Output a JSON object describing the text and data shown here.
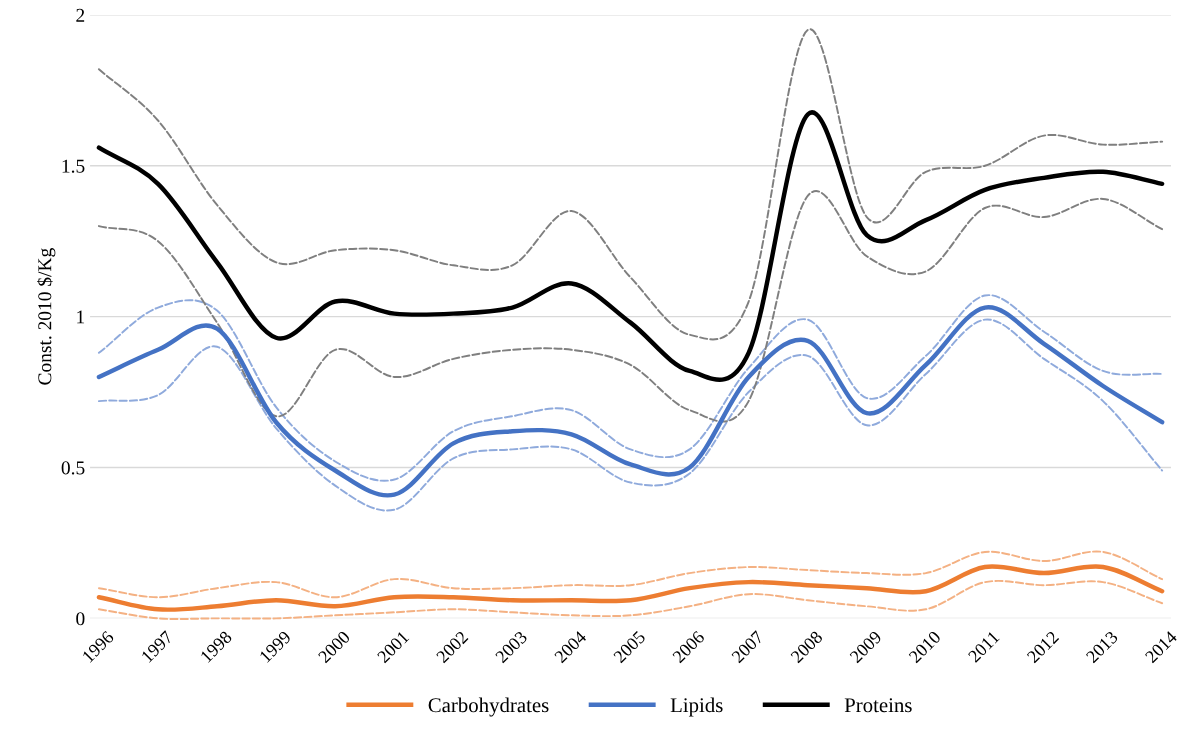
{
  "chart_data": {
    "type": "line",
    "ylabel": "Const. 2010 $/Kg",
    "categories": [
      "1996",
      "1997",
      "1998",
      "1999",
      "2000",
      "2001",
      "2002",
      "2003",
      "2004",
      "2005",
      "2006",
      "2007",
      "2008",
      "2009",
      "2010",
      "2011",
      "2012",
      "2013",
      "2014"
    ],
    "series": [
      {
        "color": "#f4b183",
        "line_style": "dashed",
        "values": [
          0.1,
          0.07,
          0.1,
          0.12,
          0.07,
          0.13,
          0.1,
          0.1,
          0.11,
          0.11,
          0.15,
          0.17,
          0.16,
          0.15,
          0.15,
          0.22,
          0.19,
          0.22,
          0.13
        ]
      },
      {
        "color": "#f4b183",
        "line_style": "dashed",
        "values": [
          0.03,
          0.0,
          0.0,
          0.0,
          0.01,
          0.02,
          0.03,
          0.02,
          0.01,
          0.01,
          0.04,
          0.08,
          0.06,
          0.04,
          0.03,
          0.12,
          0.11,
          0.12,
          0.05
        ]
      },
      {
        "color": "#8faadc",
        "line_style": "dashed",
        "values": [
          0.88,
          1.03,
          1.02,
          0.7,
          0.52,
          0.46,
          0.62,
          0.67,
          0.69,
          0.56,
          0.56,
          0.83,
          0.99,
          0.73,
          0.87,
          1.07,
          0.95,
          0.82,
          0.81
        ]
      },
      {
        "color": "#8faadc",
        "line_style": "dashed",
        "values": [
          0.72,
          0.74,
          0.9,
          0.63,
          0.44,
          0.36,
          0.53,
          0.56,
          0.56,
          0.45,
          0.48,
          0.75,
          0.87,
          0.64,
          0.81,
          0.99,
          0.86,
          0.72,
          0.49
        ]
      },
      {
        "color": "#7f7f7f",
        "line_style": "dashed",
        "values": [
          1.82,
          1.65,
          1.37,
          1.18,
          1.22,
          1.22,
          1.17,
          1.17,
          1.35,
          1.13,
          0.94,
          1.05,
          1.95,
          1.33,
          1.48,
          1.5,
          1.6,
          1.57,
          1.58
        ]
      },
      {
        "color": "#7f7f7f",
        "line_style": "dashed",
        "values": [
          1.3,
          1.25,
          0.98,
          0.67,
          0.89,
          0.8,
          0.86,
          0.89,
          0.89,
          0.84,
          0.69,
          0.72,
          1.4,
          1.2,
          1.15,
          1.36,
          1.33,
          1.39,
          1.29
        ]
      },
      {
        "name": "Carbohydrates",
        "color": "#ed7d31",
        "line_style": "solid",
        "values": [
          0.07,
          0.03,
          0.04,
          0.06,
          0.04,
          0.07,
          0.07,
          0.06,
          0.06,
          0.06,
          0.1,
          0.12,
          0.11,
          0.1,
          0.09,
          0.17,
          0.15,
          0.17,
          0.09
        ]
      },
      {
        "name": "Lipids",
        "color": "#4472c4",
        "line_style": "solid",
        "values": [
          0.8,
          0.89,
          0.96,
          0.65,
          0.49,
          0.41,
          0.58,
          0.62,
          0.61,
          0.51,
          0.5,
          0.8,
          0.92,
          0.68,
          0.84,
          1.03,
          0.91,
          0.77,
          0.65
        ]
      },
      {
        "name": "Proteins",
        "color": "#000000",
        "line_style": "solid",
        "values": [
          1.56,
          1.44,
          1.18,
          0.93,
          1.05,
          1.01,
          1.01,
          1.03,
          1.11,
          0.98,
          0.82,
          0.88,
          1.67,
          1.27,
          1.32,
          1.42,
          1.46,
          1.48,
          1.44
        ]
      }
    ],
    "ylim": [
      0,
      2
    ],
    "yticks": [
      0,
      0.5,
      1,
      1.5,
      2
    ],
    "grid": "y",
    "legend": "bottom",
    "marker": "none"
  }
}
